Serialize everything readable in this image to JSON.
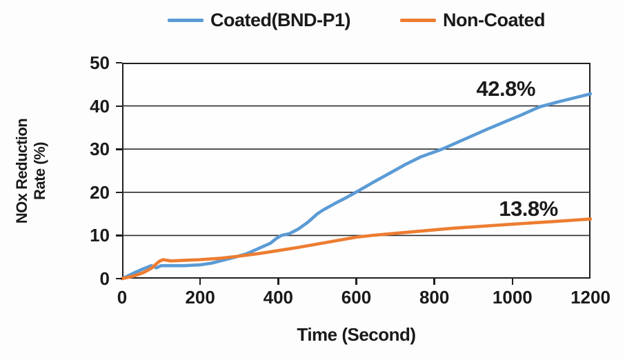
{
  "chart_data": {
    "type": "line",
    "xlabel": "Time (Second)",
    "ylabel": "NOx Reduction Rate (%)",
    "ylabel_line1": "NOx Reduction",
    "ylabel_line2": "Rate (%)",
    "xlim": [
      0,
      1200
    ],
    "ylim": [
      0,
      50
    ],
    "x_ticks": [
      0,
      200,
      400,
      600,
      800,
      1000,
      1200
    ],
    "y_ticks": [
      0,
      10,
      20,
      30,
      40,
      50
    ],
    "grid": "horizontal-only",
    "legend_position": "top",
    "series": [
      {
        "name": "Coated(BND-P1)",
        "color": "#5B9BD5",
        "final_value_pct": 42.8,
        "points": [
          [
            0,
            0
          ],
          [
            30,
            1.3
          ],
          [
            55,
            2.3
          ],
          [
            75,
            3.0
          ],
          [
            88,
            2.5
          ],
          [
            100,
            3.0
          ],
          [
            130,
            3.0
          ],
          [
            160,
            3.0
          ],
          [
            200,
            3.2
          ],
          [
            230,
            3.6
          ],
          [
            260,
            4.3
          ],
          [
            290,
            5.0
          ],
          [
            320,
            5.8
          ],
          [
            350,
            7.0
          ],
          [
            380,
            8.2
          ],
          [
            395,
            9.3
          ],
          [
            408,
            10.0
          ],
          [
            428,
            10.4
          ],
          [
            450,
            11.4
          ],
          [
            475,
            13.0
          ],
          [
            500,
            15.0
          ],
          [
            515,
            15.9
          ],
          [
            545,
            17.4
          ],
          [
            575,
            18.8
          ],
          [
            605,
            20.3
          ],
          [
            645,
            22.4
          ],
          [
            685,
            24.4
          ],
          [
            725,
            26.4
          ],
          [
            765,
            28.2
          ],
          [
            820,
            30.0
          ],
          [
            860,
            31.6
          ],
          [
            900,
            33.2
          ],
          [
            940,
            34.8
          ],
          [
            980,
            36.3
          ],
          [
            1020,
            37.8
          ],
          [
            1070,
            39.8
          ],
          [
            1120,
            41.0
          ],
          [
            1160,
            41.9
          ],
          [
            1200,
            42.8
          ]
        ]
      },
      {
        "name": "Non-Coated",
        "color": "#ED7D31",
        "final_value_pct": 13.8,
        "points": [
          [
            0,
            0
          ],
          [
            30,
            0.6
          ],
          [
            55,
            1.4
          ],
          [
            75,
            2.4
          ],
          [
            95,
            4.0
          ],
          [
            105,
            4.4
          ],
          [
            125,
            4.1
          ],
          [
            150,
            4.2
          ],
          [
            175,
            4.3
          ],
          [
            200,
            4.4
          ],
          [
            250,
            4.7
          ],
          [
            300,
            5.2
          ],
          [
            350,
            5.8
          ],
          [
            400,
            6.5
          ],
          [
            450,
            7.2
          ],
          [
            500,
            8.0
          ],
          [
            550,
            8.8
          ],
          [
            600,
            9.6
          ],
          [
            640,
            10.0
          ],
          [
            700,
            10.5
          ],
          [
            750,
            10.9
          ],
          [
            800,
            11.3
          ],
          [
            850,
            11.7
          ],
          [
            900,
            12.0
          ],
          [
            950,
            12.3
          ],
          [
            1000,
            12.6
          ],
          [
            1050,
            12.9
          ],
          [
            1100,
            13.2
          ],
          [
            1150,
            13.5
          ],
          [
            1200,
            13.8
          ]
        ]
      }
    ],
    "annotations": [
      {
        "text": "42.8%",
        "x": 983,
        "y": 44.0
      },
      {
        "text": "13.8%",
        "x": 1041,
        "y": 16.1
      }
    ]
  }
}
